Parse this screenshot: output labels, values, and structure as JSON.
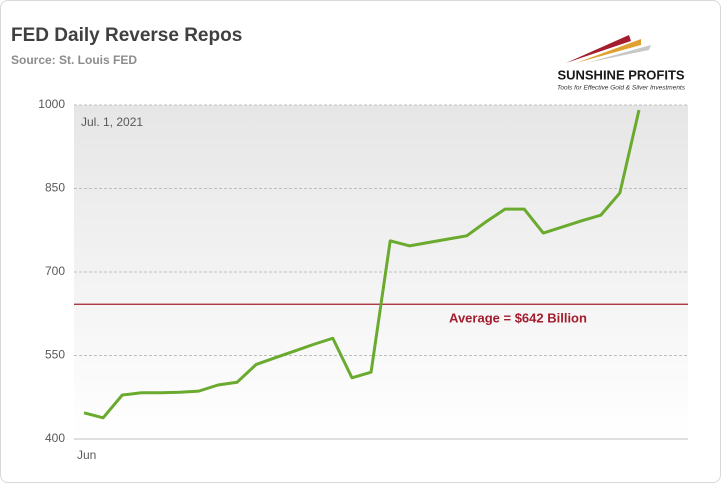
{
  "chart_data": {
    "type": "line",
    "title": "FED Daily Reverse Repos",
    "subtitle": "Source: St. Louis FED",
    "logo": {
      "name": "SUNSHINE PROFITS",
      "tagline": "Tools for Effective Gold & Silver Investments"
    },
    "annotation": "Jul. 1, 2021",
    "reference_line": {
      "value": 642,
      "label": "Average = $642 Billion",
      "color": "#a31d2e"
    },
    "categories": [
      "Jun",
      null,
      null,
      null,
      null,
      null,
      null,
      null,
      null,
      null,
      null,
      null,
      null,
      null,
      null,
      null,
      null,
      null,
      null,
      null,
      null,
      null,
      null,
      null,
      null,
      null,
      null,
      null,
      null,
      null
    ],
    "series": [
      {
        "name": "Reverse Repos",
        "color": "#6aaa2e",
        "values": [
          447,
          438,
          479,
          483,
          483,
          484,
          486,
          497,
          502,
          534,
          546,
          558,
          570,
          581,
          510,
          520,
          756,
          747,
          753,
          759,
          765,
          790,
          813,
          813,
          770,
          781,
          792,
          802,
          842,
          991
        ]
      }
    ],
    "ylim": [
      400,
      1000
    ],
    "yticks": [
      400,
      550,
      700,
      850,
      1000
    ],
    "grid": true
  }
}
